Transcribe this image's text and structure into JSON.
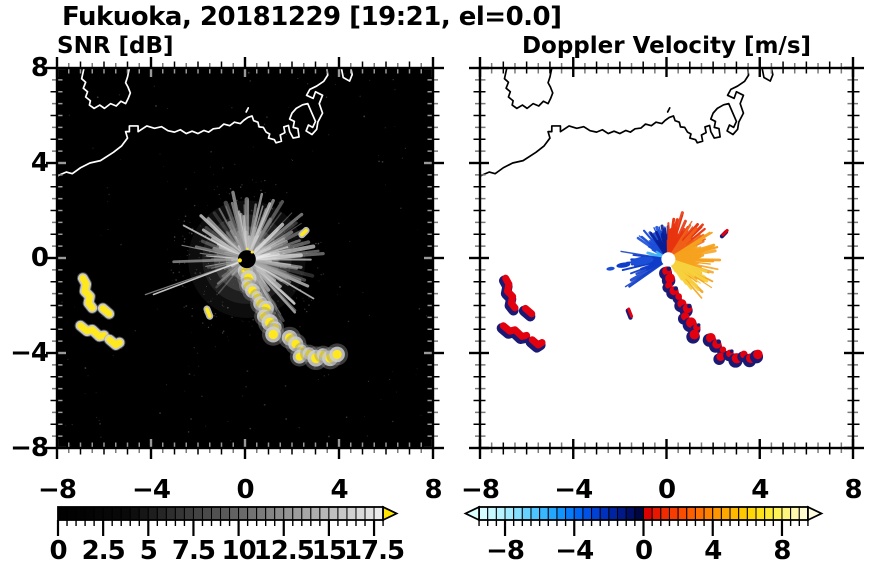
{
  "title": "Fukuoka, 20181229 [19:21, el=0.0]",
  "panels": [
    {
      "id": "snr",
      "subtitle": "SNR [dB]",
      "bg": "#000000",
      "coast_color": "#ffffff",
      "x_tick_labels": [
        "−8",
        "−4",
        "0",
        "4",
        "8"
      ],
      "y_tick_labels": [
        "8",
        "4",
        "0",
        "−4",
        "−8"
      ],
      "tick_values": [
        -8,
        -4,
        0,
        4,
        8
      ],
      "ray_specs": [
        {
          "th0": -75,
          "th1": 185,
          "n": 120,
          "l0": 0.5,
          "l1": 3.3,
          "w0": 0.04,
          "w1": 0.16,
          "o0": 0.25,
          "o1": 0.85
        },
        {
          "th0": 185,
          "th1": 232,
          "n": 16,
          "l0": 0.4,
          "l1": 1.9,
          "w0": 0.04,
          "w1": 0.12,
          "o0": 0.2,
          "o1": 0.6
        },
        {
          "th0": 262,
          "th1": 300,
          "n": 10,
          "l0": 0.3,
          "l1": 1.0,
          "w0": 0.04,
          "w1": 0.1,
          "o0": 0.2,
          "o1": 0.5
        },
        {
          "th0": -60,
          "th1": 120,
          "n": 16,
          "l0": 1.6,
          "l1": 3.4,
          "w0": 0.1,
          "w1": 0.22,
          "o0": 0.4,
          "o1": 0.75
        },
        {
          "th0": 198,
          "th1": 201,
          "n": 2,
          "l0": 4.2,
          "l1": 4.6,
          "w0": 0.05,
          "w1": 0.07,
          "o0": 0.75,
          "o1": 0.9
        }
      ],
      "echo_color": "#ffe81e",
      "halo_color": "#d0d0d0"
    },
    {
      "id": "vel",
      "subtitle": "Doppler Velocity [m/s]",
      "bg": "#ffffff",
      "coast_color": "#000000",
      "x_tick_labels": [
        "−8",
        "−4",
        "0",
        "4",
        "8"
      ],
      "tick_values": [
        -8,
        -4,
        0,
        4,
        8
      ],
      "wedges": [
        {
          "th0": 95,
          "th1": 150,
          "r": 0.95,
          "color": "#1C4FD8"
        },
        {
          "th0": 40,
          "th1": 93,
          "r": 1.0,
          "color": "#E8350F"
        },
        {
          "th0": -52,
          "th1": 36,
          "r": 1.15,
          "color": "#F6A21E"
        },
        {
          "th0": 196,
          "th1": 216,
          "r": 0.55,
          "color": "#1C4FD8"
        }
      ],
      "spike_specs": [
        {
          "th0": 95,
          "th1": 150,
          "n": 40,
          "l0": 0.5,
          "l1": 1.7,
          "color": "#1C4FD8"
        },
        {
          "th0": 88,
          "th1": 125,
          "n": 12,
          "l0": 0.7,
          "l1": 2.1,
          "color": "#0A1E96"
        },
        {
          "th0": 148,
          "th1": 170,
          "n": 10,
          "l0": 0.35,
          "l1": 1.1,
          "color": "#45B4F2"
        },
        {
          "th0": 170,
          "th1": 215,
          "n": 18,
          "l0": 0.5,
          "l1": 2.2,
          "color": "#0F3CC8"
        },
        {
          "th0": 35,
          "th1": 92,
          "n": 38,
          "l0": 0.6,
          "l1": 2.1,
          "color": "#E8350F"
        },
        {
          "th0": 25,
          "th1": 60,
          "n": 14,
          "l0": 0.8,
          "l1": 2.0,
          "color": "#F06018"
        },
        {
          "th0": -55,
          "th1": 34,
          "n": 50,
          "l0": 0.5,
          "l1": 2.3,
          "color": "#F6A21E"
        },
        {
          "th0": -58,
          "th1": -15,
          "n": 28,
          "l0": 0.4,
          "l1": 1.9,
          "color": "#F7D23E"
        }
      ],
      "west_blobs": [
        [
          -1.05,
          -0.12,
          0.5,
          0.17,
          "#1C4FD8"
        ],
        [
          -1.85,
          -0.3,
          0.3,
          0.11,
          "#0F3CC8"
        ],
        [
          -2.4,
          -0.45,
          0.18,
          0.08,
          "#1C4FD8"
        ]
      ],
      "echo_color": "#E3000F",
      "fringe_color": "#1A1A74"
    }
  ],
  "colorbars": [
    {
      "id": "snr",
      "units": "dB",
      "range": [
        0,
        18
      ],
      "cell_step": 0.5,
      "tick_labels": [
        "0",
        "2.5",
        "5",
        "7.5",
        "10",
        "12.5",
        "15",
        "17.5"
      ],
      "tick_values": [
        0,
        2.5,
        5,
        7.5,
        10,
        12.5,
        15,
        17.5
      ],
      "minor_step": 0.5,
      "stops": [
        [
          0,
          "#000000"
        ],
        [
          4,
          "#0a0a0a"
        ],
        [
          6,
          "#2a2a2a"
        ],
        [
          9,
          "#555555"
        ],
        [
          12,
          "#888888"
        ],
        [
          15,
          "#bbbbbb"
        ],
        [
          17,
          "#dddddd"
        ],
        [
          18,
          "#eeeeee"
        ]
      ],
      "arrow_right": "#ffe400"
    },
    {
      "id": "vel",
      "units": "m/s",
      "range": [
        -9.5,
        9.5
      ],
      "cell_step": 0.5,
      "tick_labels": [
        "−8",
        "−4",
        "0",
        "4",
        "8"
      ],
      "tick_values": [
        -8,
        -4,
        0,
        4,
        8
      ],
      "minor_step": 0.5,
      "stops": [
        [
          -9.5,
          "#dcffff"
        ],
        [
          -8,
          "#b0f0ff"
        ],
        [
          -6.5,
          "#58ccff"
        ],
        [
          -5,
          "#18a0ff"
        ],
        [
          -4,
          "#0070f8"
        ],
        [
          -3,
          "#0048e0"
        ],
        [
          -2,
          "#0028b0"
        ],
        [
          -1,
          "#001478"
        ],
        [
          -0.25,
          "#000640"
        ],
        [
          0.25,
          "#dc0000"
        ],
        [
          1,
          "#ee2200"
        ],
        [
          2,
          "#f84400"
        ],
        [
          3,
          "#ff6600"
        ],
        [
          4,
          "#ff8c00"
        ],
        [
          5,
          "#ffb000"
        ],
        [
          6,
          "#ffd000"
        ],
        [
          7,
          "#ffe81e"
        ],
        [
          8,
          "#fff468"
        ],
        [
          8.75,
          "#fff9ae"
        ],
        [
          9.5,
          "#fffcdd"
        ]
      ],
      "arrow_left": "#dcffff",
      "arrow_right": "#fffce0"
    }
  ],
  "coast": [
    [
      [
        -6.85,
        8
      ],
      [
        -6.95,
        7.55
      ],
      [
        -6.78,
        7.4
      ],
      [
        -6.88,
        7.15
      ],
      [
        -6.7,
        7.0
      ],
      [
        -6.78,
        6.78
      ],
      [
        -6.58,
        6.62
      ],
      [
        -6.62,
        6.44
      ],
      [
        -6.42,
        6.3
      ],
      [
        -6.18,
        6.44
      ],
      [
        -5.98,
        6.3
      ],
      [
        -5.72,
        6.5
      ],
      [
        -5.48,
        6.4
      ],
      [
        -5.28,
        6.6
      ],
      [
        -5.08,
        6.5
      ],
      [
        -4.97,
        6.72
      ],
      [
        -4.88,
        6.95
      ],
      [
        -4.98,
        7.2
      ],
      [
        -5.08,
        7.38
      ],
      [
        -5.0,
        7.62
      ],
      [
        -4.92,
        8
      ]
    ],
    [
      [
        -8,
        3.45
      ],
      [
        -7.6,
        3.62
      ],
      [
        -7.35,
        3.55
      ],
      [
        -7.0,
        3.8
      ],
      [
        -6.6,
        4.0
      ],
      [
        -6.15,
        4.1
      ],
      [
        -5.6,
        4.45
      ],
      [
        -5.25,
        4.72
      ],
      [
        -5.0,
        5.05
      ],
      [
        -5.08,
        5.32
      ],
      [
        -4.92,
        5.32
      ],
      [
        -4.92,
        5.56
      ],
      [
        -4.55,
        5.56
      ],
      [
        -4.55,
        5.32
      ],
      [
        -4.18,
        5.56
      ],
      [
        -3.85,
        5.46
      ],
      [
        -3.55,
        5.53
      ],
      [
        -3.28,
        5.36
      ],
      [
        -3.0,
        5.3
      ],
      [
        -2.75,
        5.4
      ],
      [
        -2.5,
        5.24
      ],
      [
        -2.25,
        5.34
      ],
      [
        -2.0,
        5.24
      ],
      [
        -1.75,
        5.37
      ],
      [
        -1.55,
        5.3
      ],
      [
        -1.35,
        5.44
      ],
      [
        -1.1,
        5.47
      ],
      [
        -0.9,
        5.64
      ],
      [
        -0.65,
        5.57
      ],
      [
        -0.45,
        5.72
      ],
      [
        -0.2,
        5.66
      ],
      [
        -0.05,
        5.8
      ],
      [
        0.12,
        5.92
      ],
      [
        0.3,
        5.98
      ],
      [
        0.37,
        5.78
      ],
      [
        0.55,
        5.72
      ],
      [
        0.6,
        5.52
      ],
      [
        0.78,
        5.5
      ],
      [
        0.9,
        5.3
      ],
      [
        1.05,
        5.22
      ],
      [
        1.0,
        5.05
      ],
      [
        1.25,
        4.98
      ],
      [
        1.32,
        4.85
      ],
      [
        1.55,
        4.92
      ],
      [
        1.5,
        5.18
      ],
      [
        1.7,
        5.28
      ],
      [
        1.65,
        5.52
      ],
      [
        1.85,
        5.58
      ],
      [
        1.9,
        5.32
      ],
      [
        2.05,
        5.05
      ],
      [
        2.3,
        5.1
      ],
      [
        2.25,
        5.45
      ],
      [
        2.05,
        5.5
      ],
      [
        2.1,
        5.75
      ],
      [
        1.9,
        5.85
      ],
      [
        2.0,
        6.1
      ],
      [
        2.18,
        6.3
      ],
      [
        2.45,
        6.45
      ],
      [
        2.67,
        6.5
      ],
      [
        3.0,
        5.75
      ],
      [
        2.88,
        5.5
      ],
      [
        2.7,
        5.6
      ],
      [
        2.6,
        5.35
      ],
      [
        2.85,
        5.2
      ],
      [
        3.05,
        5.42
      ],
      [
        3.1,
        5.72
      ],
      [
        3.3,
        6.1
      ],
      [
        3.16,
        6.5
      ],
      [
        3.3,
        6.85
      ],
      [
        3.0,
        7.0
      ],
      [
        2.9,
        6.72
      ],
      [
        2.62,
        6.85
      ],
      [
        2.76,
        7.1
      ],
      [
        3.05,
        7.24
      ],
      [
        3.35,
        7.44
      ],
      [
        3.52,
        7.7
      ],
      [
        3.48,
        8
      ]
    ],
    [
      [
        4.1,
        8
      ],
      [
        4.18,
        7.6
      ],
      [
        4.45,
        7.45
      ],
      [
        4.56,
        7.72
      ],
      [
        4.5,
        8
      ]
    ],
    [
      [
        0.05,
        6.15
      ],
      [
        0.14,
        6.32
      ]
    ]
  ],
  "radar_center": [
    0.08,
    -0.05
  ],
  "clutter_chain": [
    [
      0.02,
      -0.55
    ],
    [
      0.15,
      -0.85
    ],
    [
      0.1,
      -1.15
    ],
    [
      0.32,
      -1.38
    ],
    [
      0.52,
      -1.62
    ],
    [
      0.66,
      -1.92
    ],
    [
      0.9,
      -2.12
    ],
    [
      0.8,
      -2.46
    ],
    [
      1.06,
      -2.72
    ],
    [
      1.3,
      -2.92
    ],
    [
      1.2,
      -3.22
    ],
    [
      1.9,
      -3.36
    ],
    [
      2.16,
      -3.62
    ],
    [
      2.42,
      -3.86
    ],
    [
      2.32,
      -4.16
    ],
    [
      2.72,
      -4.02
    ],
    [
      3.02,
      -4.22
    ],
    [
      3.32,
      -4.06
    ],
    [
      3.62,
      -4.22
    ],
    [
      3.92,
      -4.06
    ]
  ],
  "west_clutter": [
    [
      [
        -6.9,
        -0.85
      ],
      [
        -6.76,
        -1.1
      ],
      [
        -6.82,
        -1.4
      ],
      [
        -6.6,
        -1.62
      ],
      [
        -6.66,
        -1.9
      ],
      [
        -6.5,
        -2.1
      ]
    ],
    [
      [
        -6.05,
        -2.12
      ],
      [
        -5.78,
        -2.35
      ]
    ],
    [
      [
        -7.0,
        -2.85
      ],
      [
        -6.72,
        -3.08
      ],
      [
        -6.5,
        -3.02
      ],
      [
        -6.2,
        -3.3
      ],
      [
        -6.0,
        -3.26
      ]
    ],
    [
      [
        -5.76,
        -3.44
      ],
      [
        -5.5,
        -3.66
      ],
      [
        -5.34,
        -3.56
      ]
    ]
  ],
  "small_echoes": [
    [
      [
        2.42,
        0.98
      ],
      [
        2.6,
        1.16
      ]
    ],
    [
      [
        -1.62,
        -2.15
      ],
      [
        -1.5,
        -2.45
      ]
    ]
  ],
  "chart_data": [
    {
      "type": "heatmap",
      "title": "SNR [dB]",
      "x_range": [
        -8,
        8
      ],
      "y_range": [
        -8,
        8
      ],
      "x_ticks": [
        -8,
        -4,
        0,
        4,
        8
      ],
      "y_ticks": [
        8,
        4,
        0,
        -4,
        -8
      ],
      "minor_tick_step": 0.5,
      "grid": false,
      "colorbar": {
        "range": [
          0,
          18
        ],
        "ticks": [
          0,
          2.5,
          5,
          7.5,
          10,
          12.5,
          15,
          17.5
        ],
        "colormap": "black-to-white grayscale with yellow overflow arrow",
        "units": "dB"
      },
      "features": [
        "radar at ~(0.1,0) with gray radial beam spokes out to ~3 km, densest toward N, NE, E and SE",
        "saturated (yellow, >18 dB) ground-clutter chain running from (0,-0.5) to (3.9,-4.1)",
        "yellow clutter arcs near (-6.8,-1.5), (-5.9,-2.2), (-6.6,-3.1) and (-5.5,-3.6)",
        "small yellow echoes at (2.5,1.1) and (-1.55,-2.3)",
        "white coastline of Hakata Bay: island at upper left, port piers between x=1 and x=4.5"
      ]
    },
    {
      "type": "heatmap",
      "title": "Doppler Velocity [m/s]",
      "x_range": [
        -8,
        8
      ],
      "y_range": [
        -8,
        8
      ],
      "x_ticks": [
        -8,
        -4,
        0,
        4,
        8
      ],
      "y_ticks": [
        8,
        4,
        0,
        -4,
        -8
      ],
      "minor_tick_step": 0.5,
      "grid": false,
      "colorbar": {
        "range": [
          -9.5,
          9.5
        ],
        "ticks": [
          -8,
          -4,
          0,
          4,
          8
        ],
        "colormap": "pale-cyan to blue to navy for negative; red to orange to yellow to cream for positive",
        "units": "m/s"
      },
      "features": [
        "blue (negative, approaching) fan north-northwest of radar and blue spikes due west",
        "red-orange (positive, receding) fan northeast; yellow-orange fan east to southeast",
        "clutter chain to the southeast and arcs to the southwest shown red with navy fringes",
        "white gap at radar location ~(0.1,0)"
      ]
    }
  ]
}
